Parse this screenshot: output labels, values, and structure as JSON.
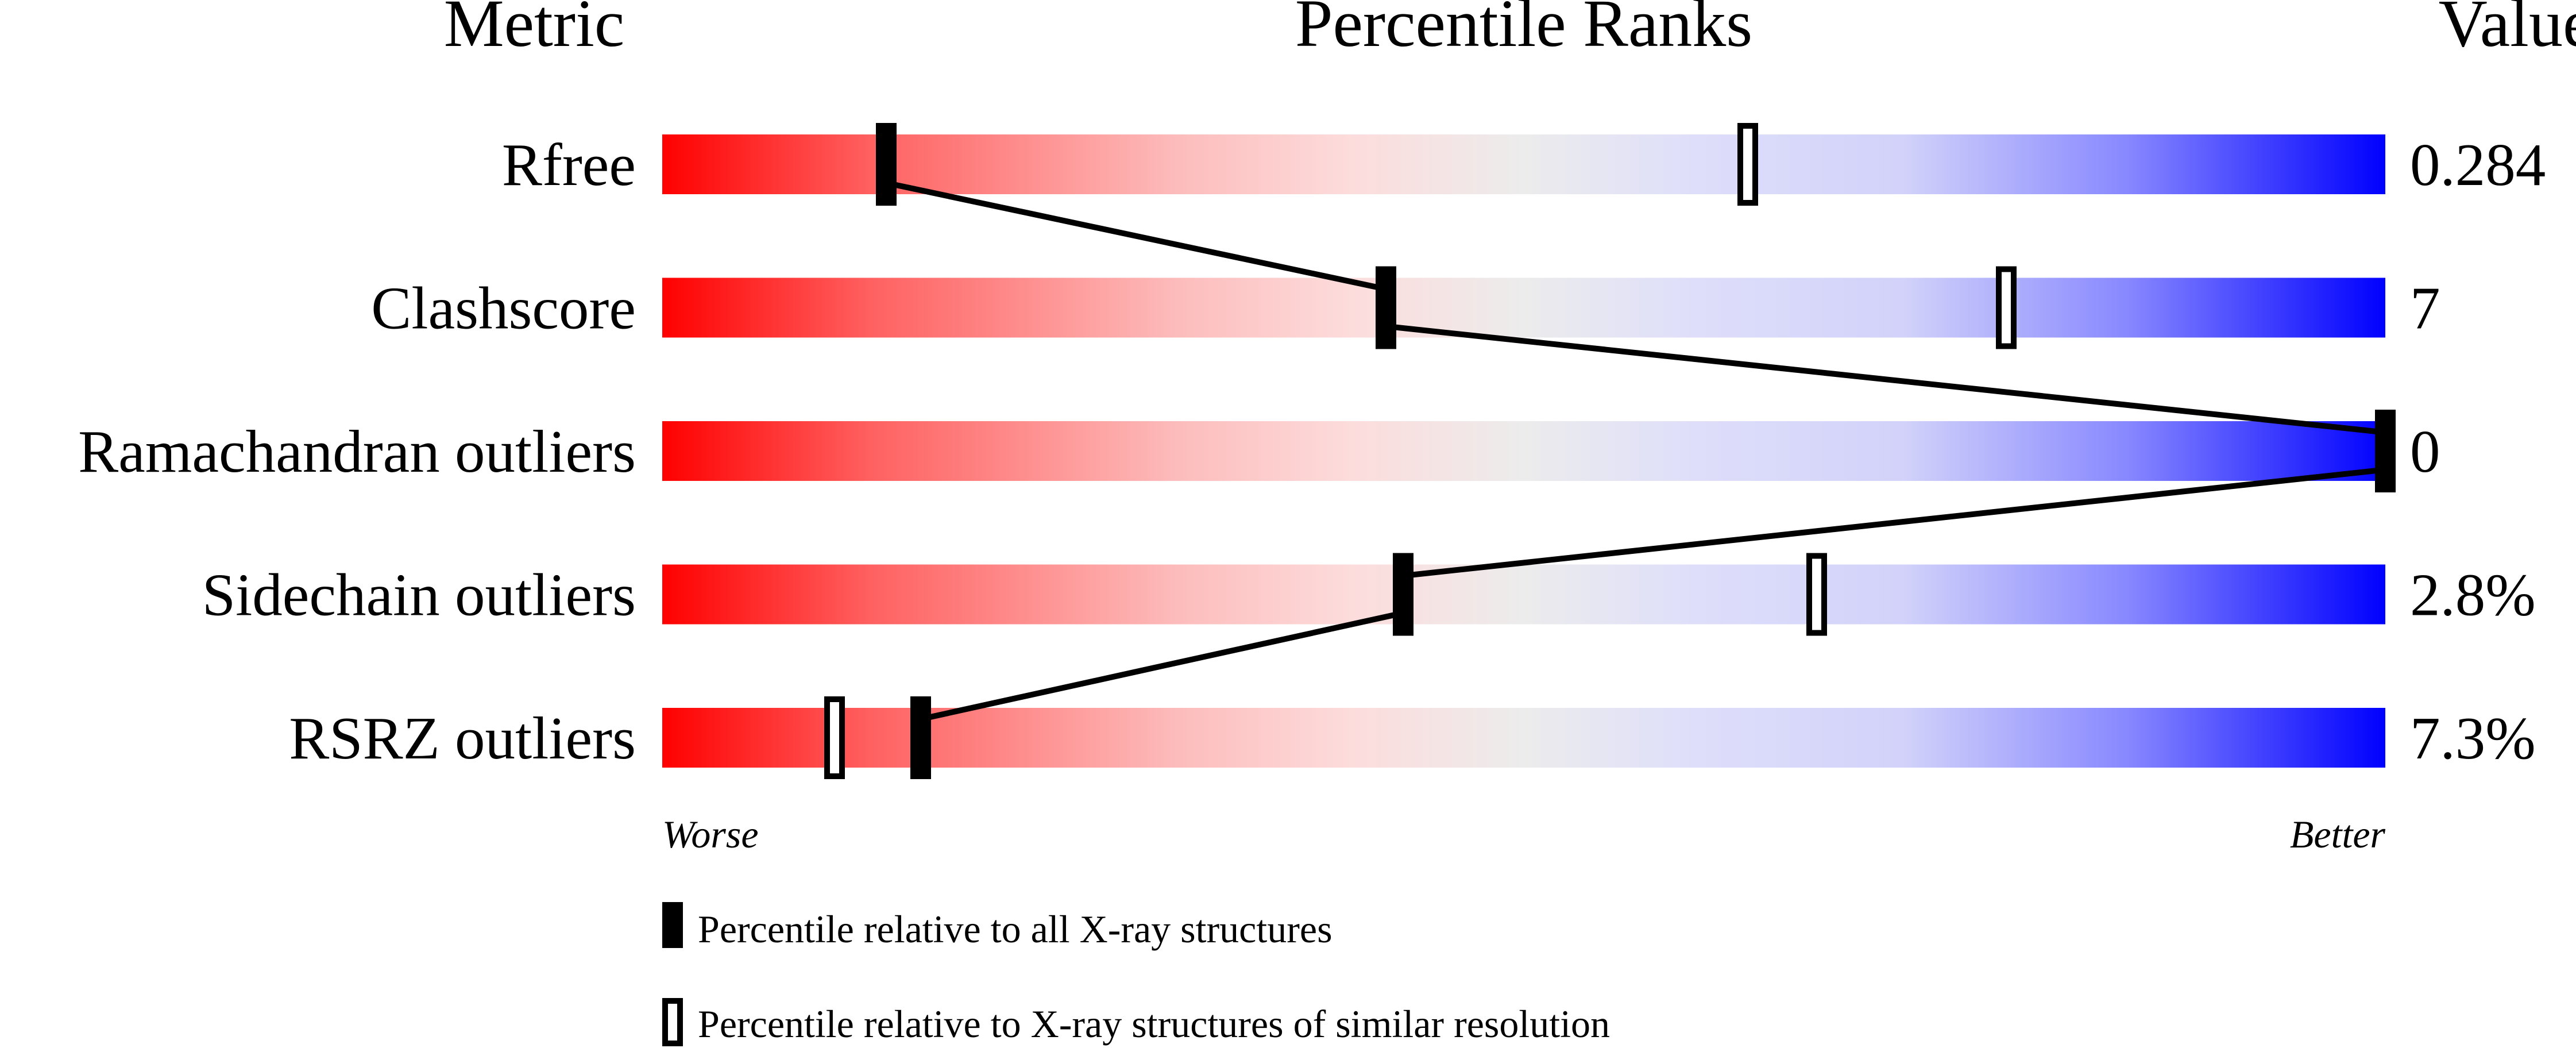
{
  "headers": {
    "metric": "Metric",
    "percentile": "Percentile Ranks",
    "value": "Value"
  },
  "scale_labels": {
    "worse": "Worse",
    "better": "Better"
  },
  "legend": {
    "all": "Percentile relative to all X-ray structures",
    "similar": "Percentile relative to X-ray structures of similar resolution"
  },
  "colors": {
    "worse": "#ff0000",
    "middle": "#eeeeee",
    "better": "#0000ff",
    "marker": "#000000"
  },
  "chart_data": {
    "type": "percentile-slider",
    "xlim": [
      0,
      100
    ],
    "metrics": [
      {
        "name": "Rfree",
        "value": "0.284",
        "percentile_all": 13,
        "percentile_similar": 63
      },
      {
        "name": "Clashscore",
        "value": "7",
        "percentile_all": 42,
        "percentile_similar": 78
      },
      {
        "name": "Ramachandran outliers",
        "value": "0",
        "percentile_all": 100,
        "percentile_similar": 100
      },
      {
        "name": "Sidechain outliers",
        "value": "2.8%",
        "percentile_all": 43,
        "percentile_similar": 67
      },
      {
        "name": "RSRZ outliers",
        "value": "7.3%",
        "percentile_all": 15,
        "percentile_similar": 10
      }
    ]
  }
}
